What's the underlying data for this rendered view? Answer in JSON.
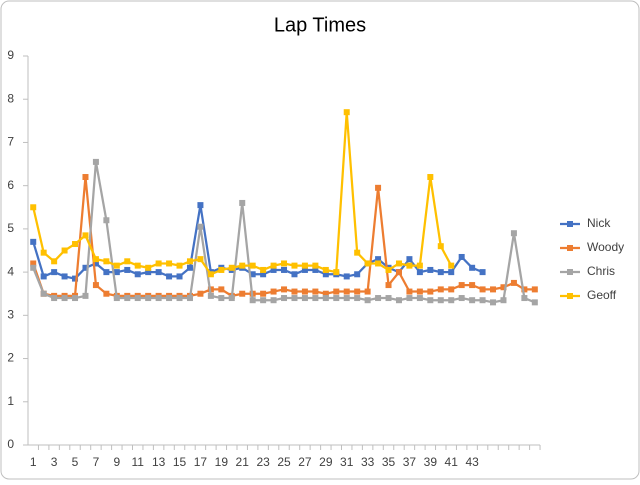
{
  "chart_data": {
    "type": "line",
    "title": "Lap Times",
    "categories": [
      1,
      null,
      3,
      null,
      5,
      null,
      7,
      null,
      9,
      null,
      11,
      null,
      13,
      null,
      15,
      null,
      17,
      null,
      19,
      null,
      21,
      null,
      23,
      null,
      25,
      null,
      27,
      null,
      29,
      null,
      31,
      null,
      33,
      null,
      35,
      null,
      37,
      null,
      39,
      null,
      41,
      null,
      43,
      null,
      null,
      null,
      null,
      null,
      null
    ],
    "series": [
      {
        "name": "Nick",
        "color": "#4472c4",
        "values": [
          4.7,
          3.9,
          4.0,
          3.9,
          3.85,
          4.1,
          4.2,
          4.0,
          4.0,
          4.05,
          3.95,
          4.0,
          4.0,
          3.9,
          3.9,
          4.1,
          5.55,
          4.0,
          4.1,
          4.05,
          4.1,
          3.95,
          3.95,
          4.05,
          4.05,
          3.95,
          4.05,
          4.05,
          3.95,
          3.95,
          3.9,
          3.95,
          4.2,
          4.3,
          4.1,
          4.0,
          4.3,
          4.0,
          4.05,
          4.0,
          4.0,
          4.35,
          4.1,
          4.0,
          null,
          null,
          null,
          null,
          null
        ]
      },
      {
        "name": "Woody",
        "color": "#ed7d31",
        "values": [
          4.2,
          3.5,
          3.45,
          3.45,
          3.45,
          6.2,
          3.7,
          3.5,
          3.45,
          3.45,
          3.45,
          3.45,
          3.45,
          3.45,
          3.45,
          3.45,
          3.5,
          3.6,
          3.6,
          3.45,
          3.5,
          3.5,
          3.5,
          3.55,
          3.6,
          3.55,
          3.55,
          3.55,
          3.5,
          3.55,
          3.55,
          3.55,
          3.55,
          5.95,
          3.7,
          4.0,
          3.55,
          3.55,
          3.55,
          3.6,
          3.6,
          3.7,
          3.7,
          3.6,
          3.6,
          3.65,
          3.75,
          3.6,
          3.6
        ]
      },
      {
        "name": "Chris",
        "color": "#a5a5a5",
        "values": [
          4.1,
          3.5,
          3.4,
          3.4,
          3.4,
          3.45,
          6.55,
          5.2,
          3.4,
          3.4,
          3.4,
          3.4,
          3.4,
          3.4,
          3.4,
          3.4,
          5.05,
          3.45,
          3.4,
          3.4,
          5.6,
          3.35,
          3.35,
          3.35,
          3.4,
          3.4,
          3.4,
          3.4,
          3.4,
          3.4,
          3.4,
          3.4,
          3.35,
          3.4,
          3.4,
          3.35,
          3.4,
          3.4,
          3.35,
          3.35,
          3.35,
          3.4,
          3.35,
          3.35,
          3.3,
          3.35,
          4.9,
          3.4,
          3.3
        ]
      },
      {
        "name": "Geoff",
        "color": "#ffc000",
        "values": [
          5.5,
          4.45,
          4.25,
          4.5,
          4.65,
          4.85,
          4.3,
          4.25,
          4.15,
          4.25,
          4.15,
          4.1,
          4.2,
          4.2,
          4.15,
          4.25,
          4.3,
          3.95,
          4.05,
          4.1,
          4.15,
          4.15,
          4.05,
          4.15,
          4.2,
          4.15,
          4.15,
          4.15,
          4.05,
          4.0,
          7.7,
          4.45,
          4.2,
          4.2,
          4.05,
          4.2,
          4.15,
          4.15,
          6.2,
          4.6,
          4.15,
          null,
          null,
          null,
          null,
          null,
          null,
          null,
          null
        ]
      }
    ],
    "ylim": [
      0,
      9
    ],
    "yticks": [
      0,
      1,
      2,
      3,
      4,
      5,
      6,
      7,
      8,
      9
    ],
    "grid": false,
    "legend": "right"
  }
}
